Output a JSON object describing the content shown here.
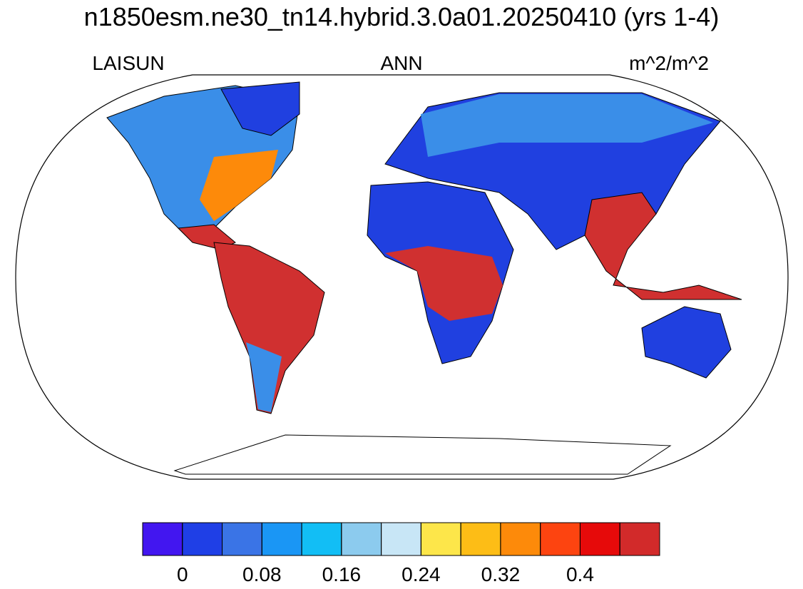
{
  "title": "n1850esm.ne30_tn14.hybrid.3.0a01.20250410 (yrs 1-4)",
  "left_subtitle": "LAISUN",
  "center_subtitle": "ANN",
  "right_subtitle": "m^2/m^2",
  "colorbar": {
    "levels": [
      0,
      0.04,
      0.08,
      0.12,
      0.16,
      0.2,
      0.24,
      0.28,
      0.32,
      0.36,
      0.4,
      0.44
    ],
    "ticks": [
      0,
      0.08,
      0.16,
      0.24,
      0.32,
      0.4
    ],
    "colors": [
      "#4216f0",
      "#1f3fe6",
      "#3a74e6",
      "#1a96f5",
      "#12bef5",
      "#8ccbee",
      "#c8e6f6",
      "#fde64a",
      "#fdbd16",
      "#fd8a0a",
      "#fd4410",
      "#e60a0a",
      "#d22a2a"
    ]
  }
}
